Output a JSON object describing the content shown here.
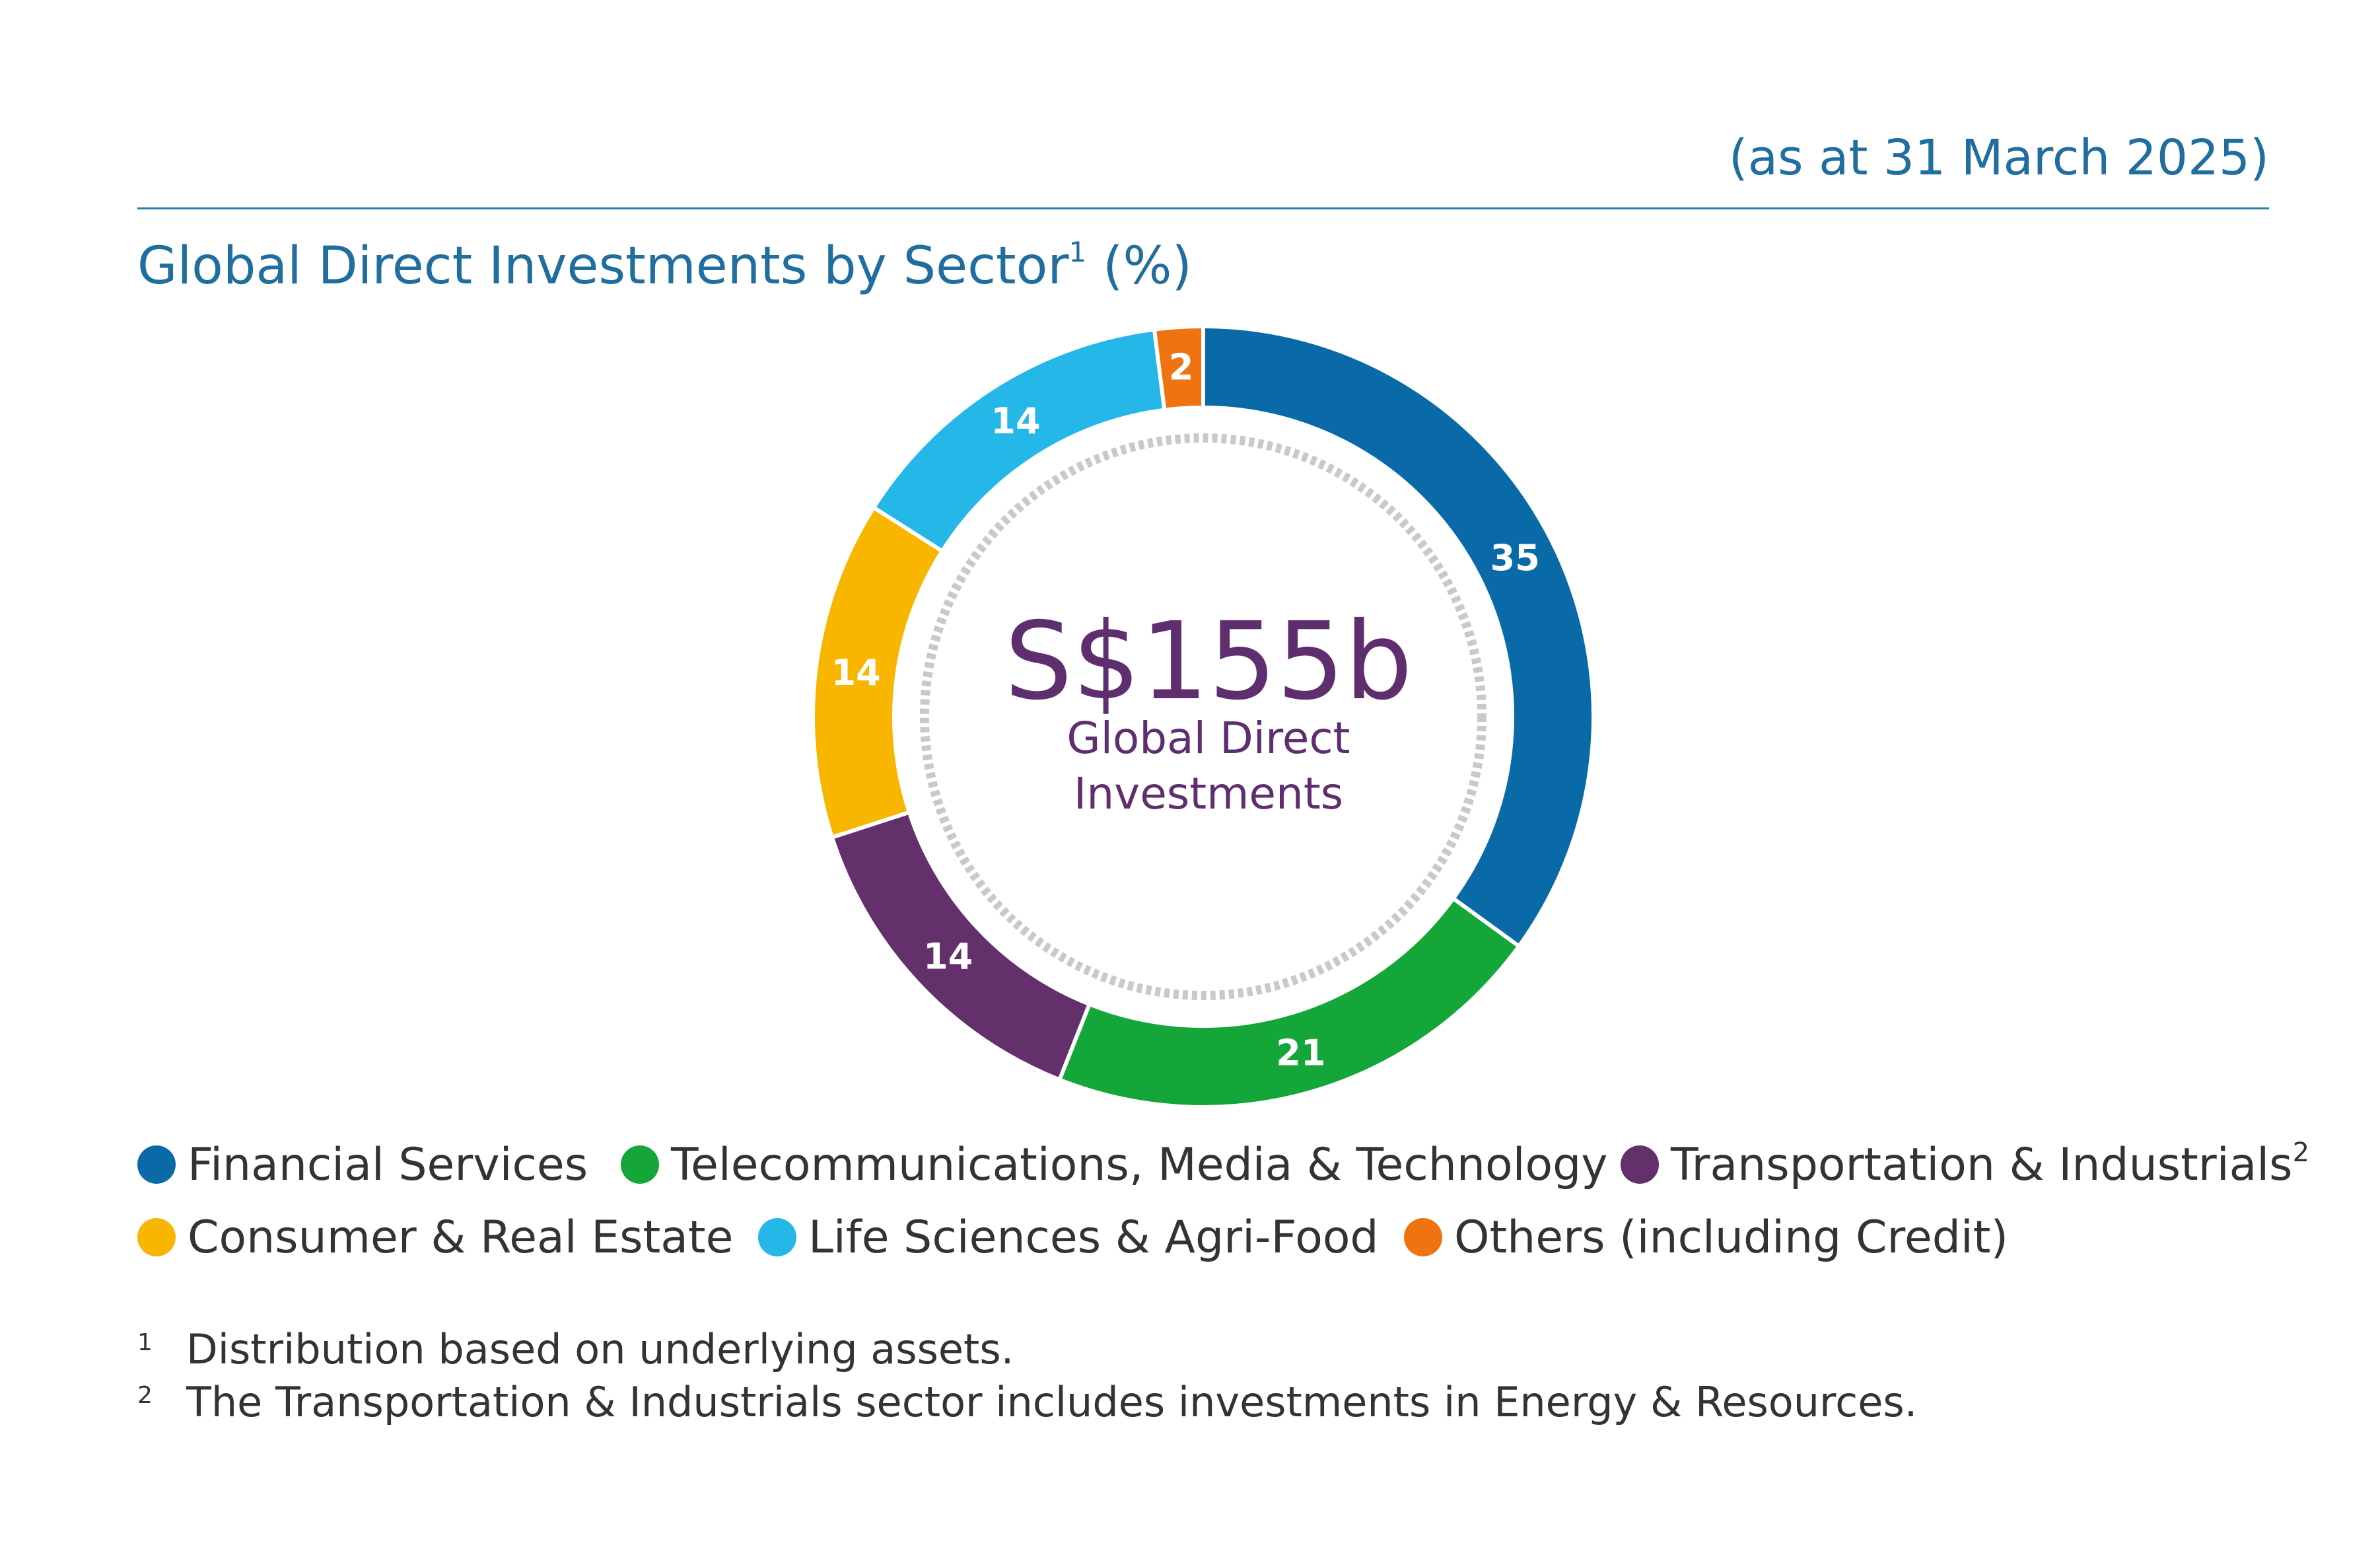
{
  "header": {
    "as_at": "(as at 31 March 2025)",
    "title": "Global Direct Investments by Sector",
    "title_sup": "1",
    "title_unit": "(%)"
  },
  "center": {
    "total": "S$155b",
    "label_line1": "Global Direct",
    "label_line2": "Investments"
  },
  "colors": {
    "financial": "#0a6aa8",
    "tmt": "#15a63a",
    "transport": "#63306c",
    "consumer": "#f9b600",
    "life": "#25b7e8",
    "others": "#ef7311",
    "center_text": "#5f2e6e",
    "title": "#1f6e9f"
  },
  "legend": [
    {
      "label": "Financial Services",
      "sup": "",
      "color": "#0a6aa8"
    },
    {
      "label": "Telecommunications, Media & Technology",
      "sup": "",
      "color": "#15a63a"
    },
    {
      "label": "Transportation & Industrials",
      "sup": "2",
      "color": "#63306c"
    },
    {
      "label": "Consumer & Real Estate",
      "sup": "",
      "color": "#f9b600"
    },
    {
      "label": "Life Sciences & Agri-Food",
      "sup": "",
      "color": "#25b7e8"
    },
    {
      "label": "Others (including Credit)",
      "sup": "",
      "color": "#ef7311"
    }
  ],
  "footnotes": [
    {
      "num": "1",
      "text": "Distribution based on underlying assets."
    },
    {
      "num": "2",
      "text": "The Transportation & Industrials sector includes investments in Energy & Resources."
    }
  ],
  "chart_data": {
    "type": "pie",
    "title": "Global Direct Investments by Sector (%)",
    "categories": [
      "Financial Services",
      "Telecommunications, Media & Technology",
      "Transportation & Industrials",
      "Consumer & Real Estate",
      "Life Sciences & Agri-Food",
      "Others (including Credit)"
    ],
    "values": [
      35,
      21,
      14,
      14,
      14,
      2
    ],
    "colors": [
      "#0a6aa8",
      "#15a63a",
      "#63306c",
      "#f9b600",
      "#25b7e8",
      "#ef7311"
    ],
    "donut": true,
    "center_total": "S$155b",
    "legend_position": "bottom"
  }
}
